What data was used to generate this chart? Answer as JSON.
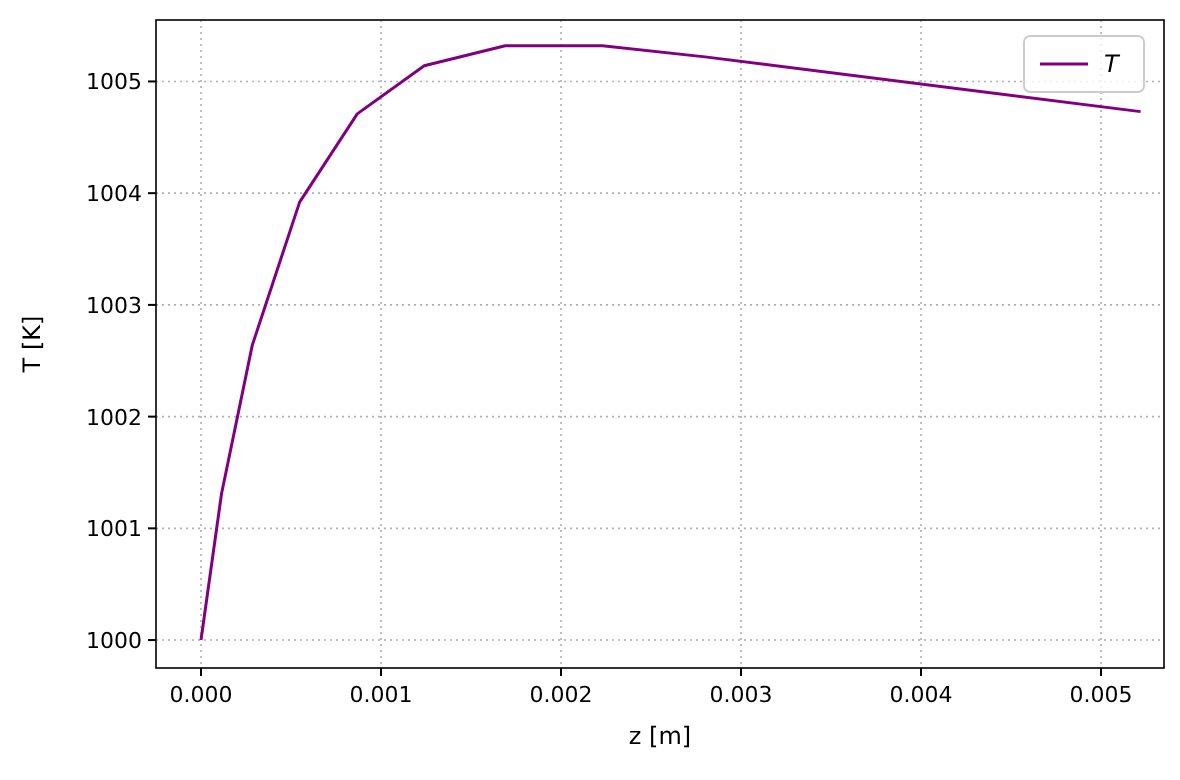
{
  "chart_data": {
    "type": "line",
    "xlabel": "z [m]",
    "ylabel": "T [K]",
    "xlim": [
      -0.00025,
      0.00535
    ],
    "ylim": [
      999.75,
      1005.55
    ],
    "xticks": [
      {
        "value": 0,
        "label": "0.000"
      },
      {
        "value": 0.001,
        "label": "0.001"
      },
      {
        "value": 0.002,
        "label": "0.002"
      },
      {
        "value": 0.003,
        "label": "0.003"
      },
      {
        "value": 0.004,
        "label": "0.004"
      },
      {
        "value": 0.005,
        "label": "0.005"
      }
    ],
    "yticks": [
      1000,
      1001,
      1002,
      1003,
      1004,
      1005
    ],
    "grid": true,
    "legend": "top right",
    "line_style": "solid",
    "marker": "none",
    "series": [
      {
        "name": "T",
        "color": "#800080",
        "x": [
          0,
          0.000114,
          0.000285,
          0.000548,
          0.000868,
          0.00124,
          0.00169,
          0.00223,
          0.0028,
          0.00522
        ],
        "values": [
          1000,
          1001.31,
          1002.64,
          1003.92,
          1004.71,
          1005.14,
          1005.32,
          1005.32,
          1005.22,
          1004.73
        ]
      }
    ]
  }
}
